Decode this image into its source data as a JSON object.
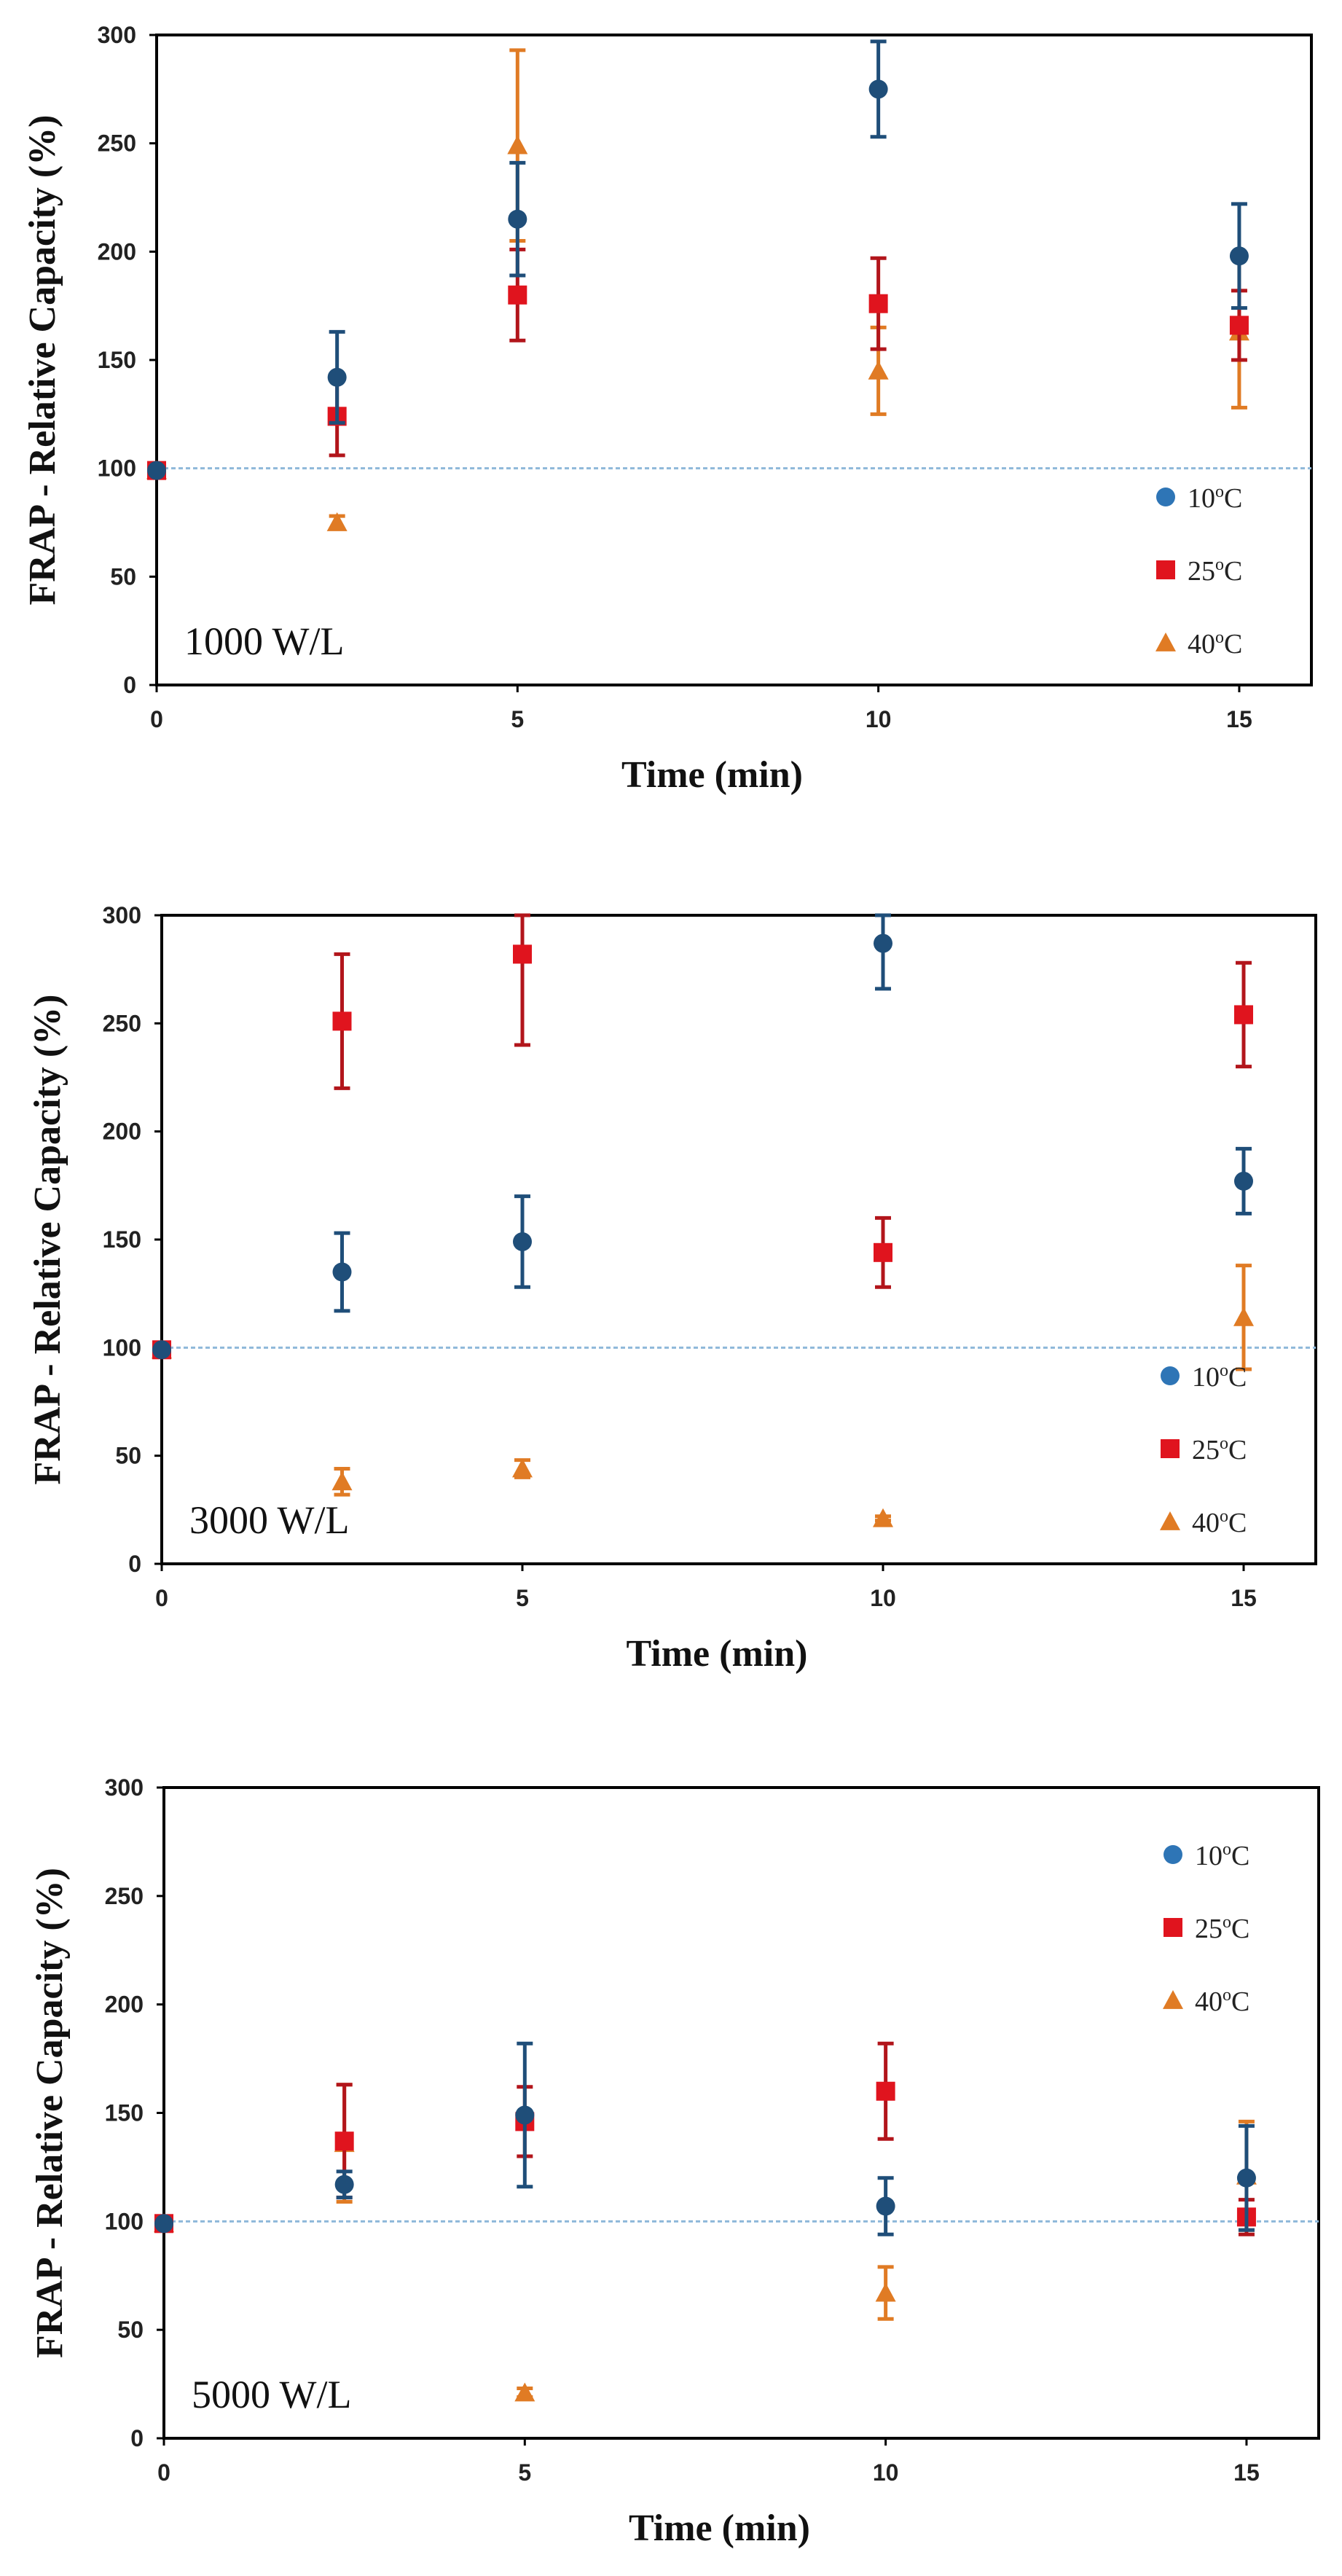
{
  "colors": {
    "c10": "#1F4E79",
    "c10_legend": "#2E75B6",
    "c25": "#E0141E",
    "c25_err": "#B2151B",
    "c40": "#E07B24",
    "baseline": "#8EB8D9"
  },
  "chart_data": [
    {
      "type": "scatter",
      "annotation": "1000 W/L",
      "xlabel": "Time (min)",
      "ylabel": "FRAP - Relative Capacity (%)",
      "xlim": [
        0,
        16
      ],
      "ylim": [
        0,
        300
      ],
      "xticks": [
        0,
        5,
        10,
        15
      ],
      "yticks": [
        0,
        50,
        100,
        150,
        200,
        250,
        300
      ],
      "baseline": 100,
      "legend_position": "bottom-right",
      "series": [
        {
          "name": "10°C",
          "legend_base": "10",
          "legend_sup": "o",
          "legend_unit": "C",
          "marker": "circle",
          "x": [
            0,
            2.5,
            5,
            10,
            15
          ],
          "y": [
            99,
            142,
            215,
            275,
            198
          ],
          "err": [
            0,
            21,
            26,
            22,
            24
          ]
        },
        {
          "name": "25°C",
          "legend_base": "25",
          "legend_sup": "o",
          "legend_unit": "C",
          "marker": "square",
          "x": [
            0,
            2.5,
            5,
            10,
            15
          ],
          "y": [
            99,
            124,
            180,
            176,
            166
          ],
          "err": [
            0,
            18,
            21,
            21,
            16
          ]
        },
        {
          "name": "40°C",
          "legend_base": "40",
          "legend_sup": "o",
          "legend_unit": "C",
          "marker": "triangle",
          "x": [
            0,
            2.5,
            5,
            10,
            15
          ],
          "y": [
            99,
            75,
            249,
            145,
            163
          ],
          "err": [
            0,
            3,
            44,
            20,
            35
          ]
        }
      ]
    },
    {
      "type": "scatter",
      "annotation": "3000 W/L",
      "xlabel": "Time (min)",
      "ylabel": "FRAP - Relative Capacity (%)",
      "xlim": [
        0,
        16
      ],
      "ylim": [
        0,
        300
      ],
      "xticks": [
        0,
        5,
        10,
        15
      ],
      "yticks": [
        0,
        50,
        100,
        150,
        200,
        250,
        300
      ],
      "baseline": 100,
      "legend_position": "bottom-right",
      "series": [
        {
          "name": "10°C",
          "legend_base": "10",
          "legend_sup": "o",
          "legend_unit": "C",
          "marker": "circle",
          "x": [
            0,
            2.5,
            5,
            10,
            15
          ],
          "y": [
            99,
            135,
            149,
            287,
            177
          ],
          "err": [
            0,
            18,
            21,
            21,
            15
          ]
        },
        {
          "name": "25°C",
          "legend_base": "25",
          "legend_sup": "o",
          "legend_unit": "C",
          "marker": "square",
          "x": [
            0,
            2.5,
            5,
            10,
            15
          ],
          "y": [
            99,
            251,
            282,
            144,
            254
          ],
          "err": [
            0,
            31,
            42,
            16,
            24
          ]
        },
        {
          "name": "40°C",
          "legend_base": "40",
          "legend_sup": "o",
          "legend_unit": "C",
          "marker": "triangle",
          "x": [
            0,
            2.5,
            5,
            10,
            15
          ],
          "y": [
            99,
            38,
            44,
            21,
            114
          ],
          "err": [
            0,
            6,
            4,
            1,
            24
          ]
        }
      ]
    },
    {
      "type": "scatter",
      "annotation": "5000 W/L",
      "xlabel": "Time (min)",
      "ylabel": "FRAP - Relative Capacity (%)",
      "xlim": [
        0,
        16
      ],
      "ylim": [
        0,
        300
      ],
      "xticks": [
        0,
        5,
        10,
        15
      ],
      "yticks": [
        0,
        50,
        100,
        150,
        200,
        250,
        300
      ],
      "baseline": 100,
      "legend_position": "top-right",
      "series": [
        {
          "name": "10°C",
          "legend_base": "10",
          "legend_sup": "o",
          "legend_unit": "C",
          "marker": "circle",
          "x": [
            0,
            2.5,
            5,
            10,
            15
          ],
          "y": [
            99,
            117,
            149,
            107,
            120
          ],
          "err": [
            0,
            6,
            33,
            13,
            24
          ]
        },
        {
          "name": "25°C",
          "legend_base": "25",
          "legend_sup": "o",
          "legend_unit": "C",
          "marker": "square",
          "x": [
            0,
            2.5,
            5,
            10,
            15
          ],
          "y": [
            99,
            137,
            146,
            160,
            102
          ],
          "err": [
            0,
            26,
            16,
            22,
            8
          ]
        },
        {
          "name": "40°C",
          "legend_base": "40",
          "legend_sup": "o",
          "legend_unit": "C",
          "marker": "triangle",
          "x": [
            0,
            2.5,
            5,
            10,
            15
          ],
          "y": [
            99,
            136,
            21,
            67,
            121
          ],
          "err": [
            0,
            27,
            2,
            12,
            25
          ]
        }
      ]
    }
  ]
}
